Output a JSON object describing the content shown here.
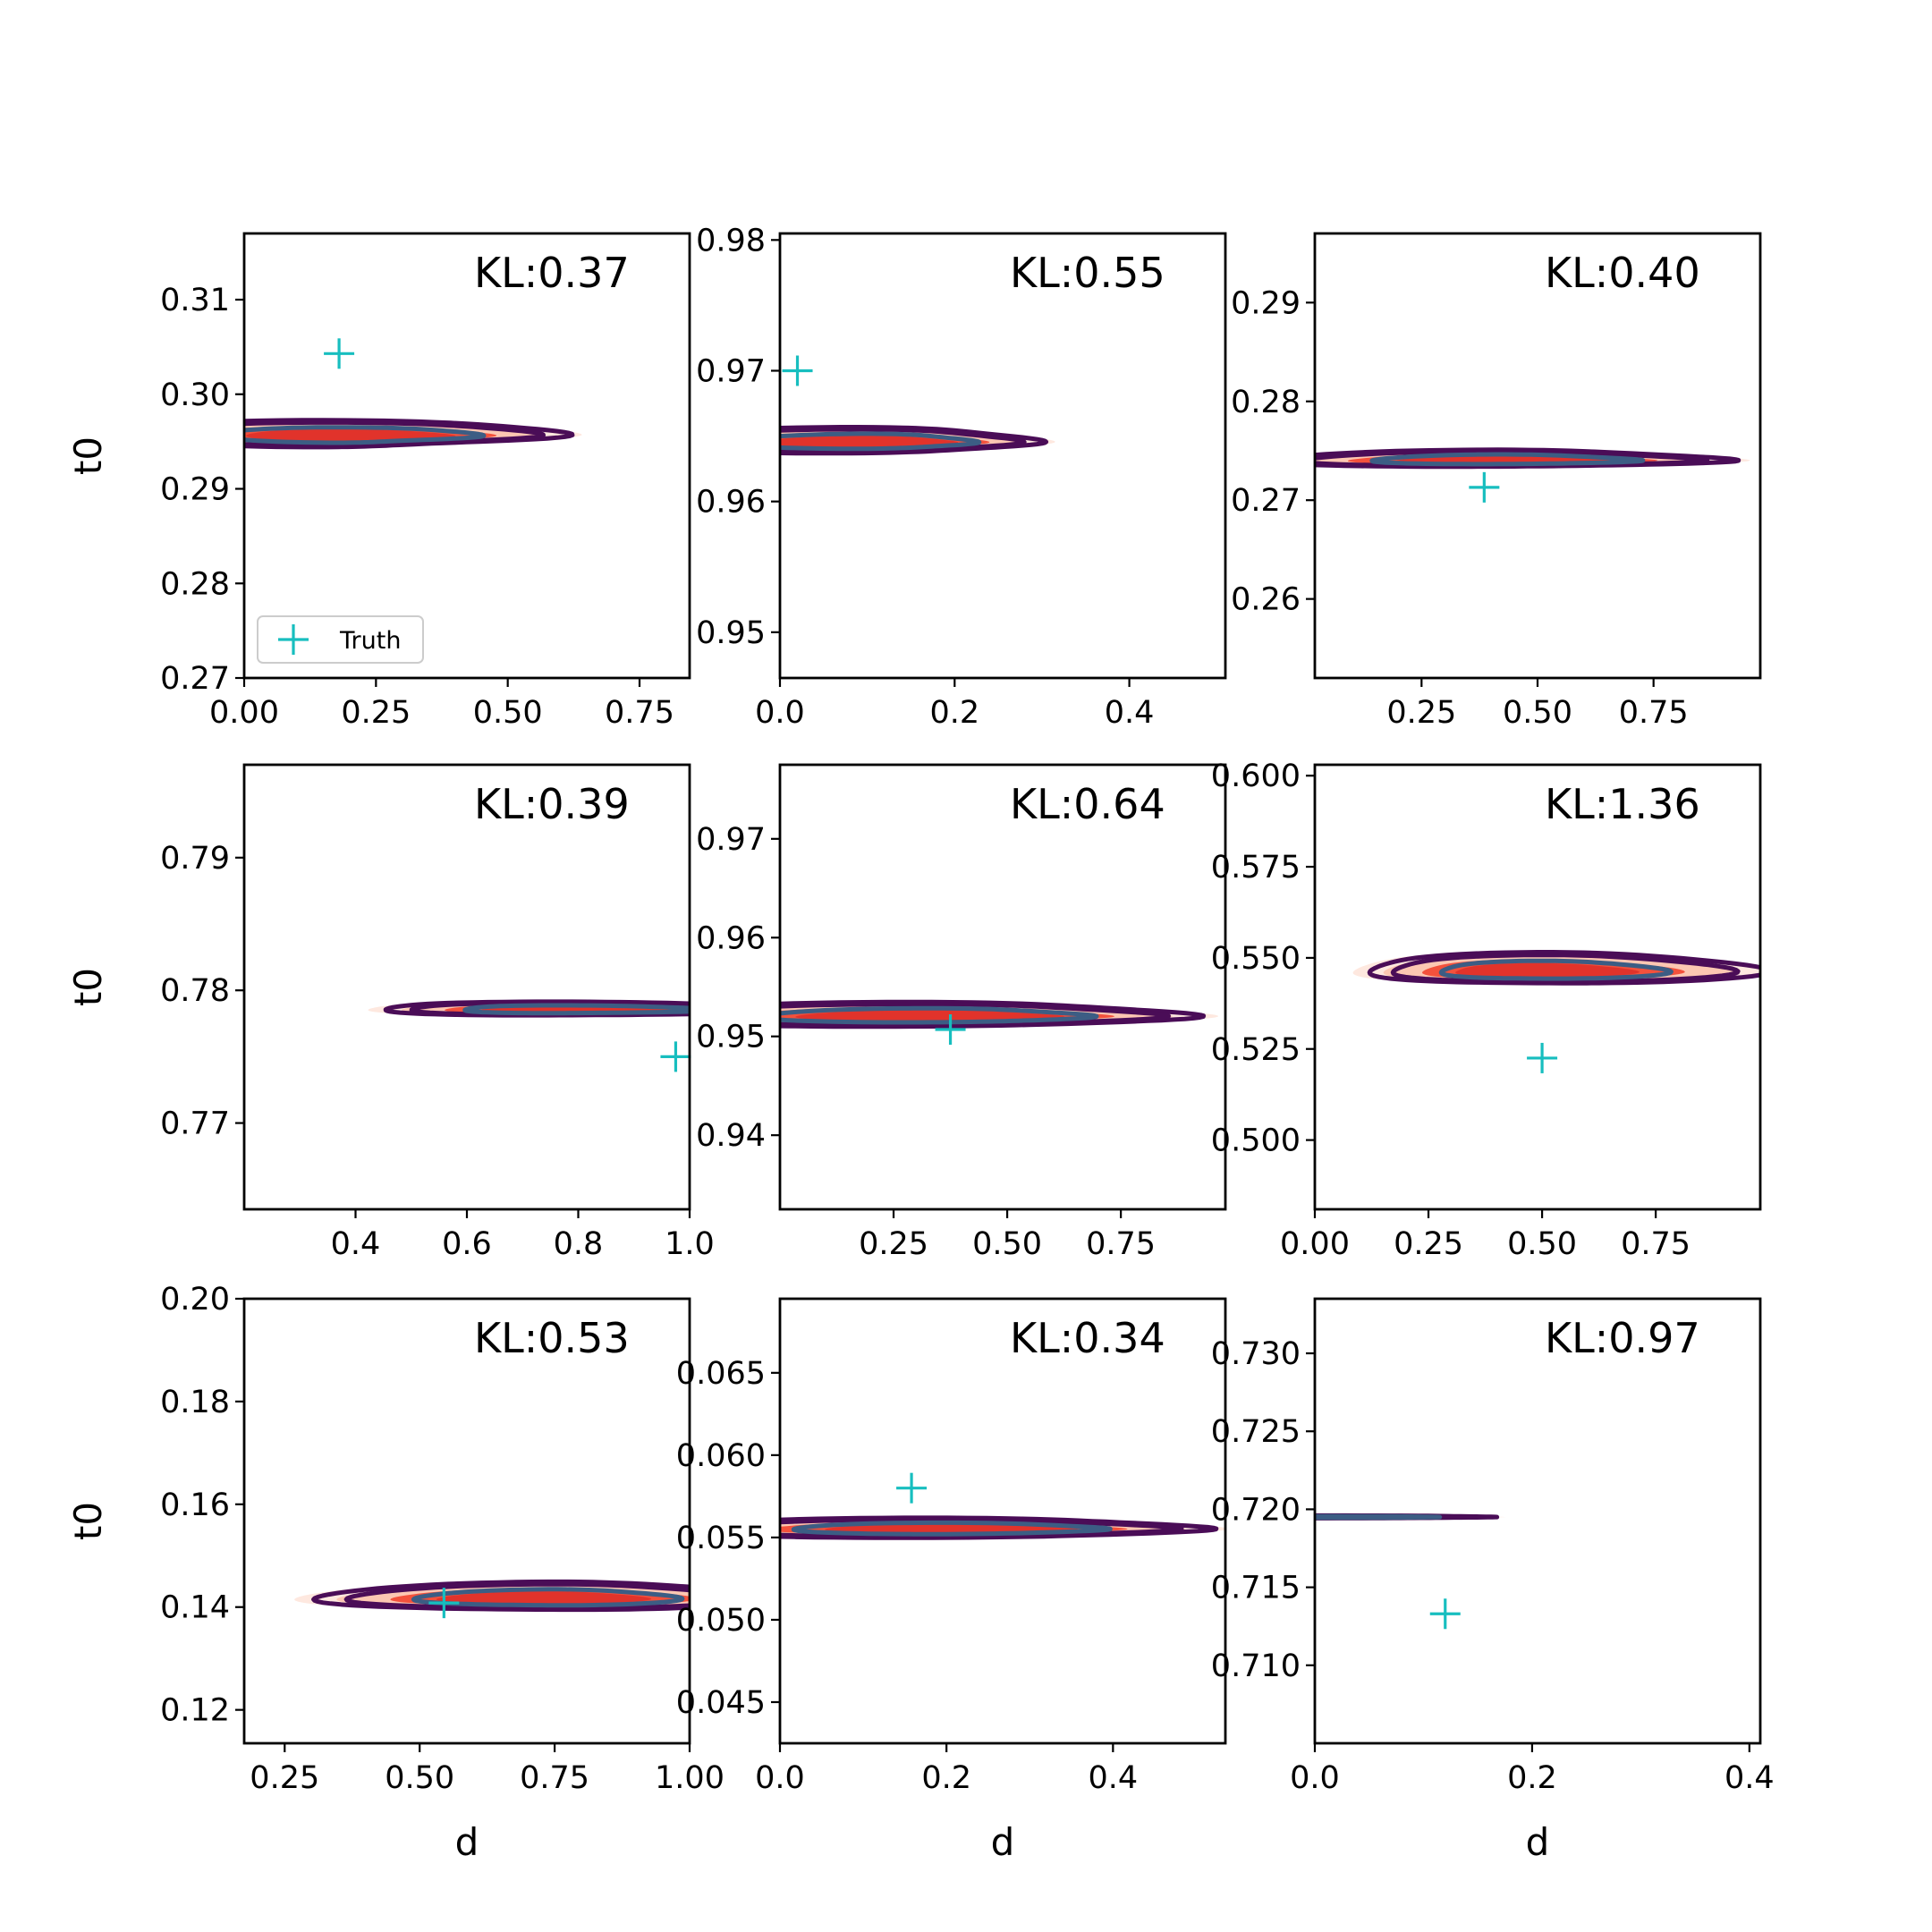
{
  "colors": {
    "posterior_fill_levels": [
      "#fee8df",
      "#fcc7b2",
      "#f3513c",
      "#e1332b"
    ],
    "outer_contour": "#4a0d57",
    "inner_contour": "#3c5d84",
    "truth_marker": "#17bebf"
  },
  "legend": {
    "label": "Truth",
    "panel": 0,
    "placement": "lower-left"
  },
  "chart_data": [
    {
      "type": "contour",
      "kl": "KL:0.37",
      "truth": [
        0.18,
        0.3043
      ],
      "xlim": [
        0,
        0.845
      ],
      "ylim": [
        0.27,
        0.317
      ],
      "xticks": [
        "0.00",
        "0.25",
        "0.50",
        "0.75"
      ],
      "xtick_values": [
        0,
        0.25,
        0.5,
        0.75
      ],
      "yticks": [
        "0.27",
        "0.28",
        "0.29",
        "0.30",
        "0.31"
      ],
      "ytick_values": [
        0.27,
        0.28,
        0.29,
        0.3,
        0.31
      ],
      "xlabel": "",
      "ylabel": "t0",
      "center": [
        0.22,
        0.2955
      ],
      "dx": [
        0.36,
        -0.31
      ],
      "dy": [
        0.08,
        0.147
      ],
      "u": [
        -0.16,
        0.12,
        -0.35
      ],
      "v": [
        -0.23,
        0.035,
        -0.25
      ]
    },
    {
      "type": "contour",
      "kl": "KL:0.55",
      "truth": [
        0.02,
        0.97
      ],
      "xlim": [
        0,
        0.51
      ],
      "ylim": [
        0.9465,
        0.9805
      ],
      "xticks": [
        "0.0",
        "0.2",
        "0.4"
      ],
      "xtick_values": [
        0,
        0.2,
        0.4
      ],
      "yticks": [
        "0.95",
        "0.96",
        "0.97",
        "0.98"
      ],
      "ytick_values": [
        0.95,
        0.96,
        0.97,
        0.98
      ],
      "xlabel": "",
      "ylabel": "",
      "center": [
        0.12,
        0.9645
      ],
      "dx": [
        0.34,
        -0.24
      ],
      "dy": [
        0.1,
        0.13
      ],
      "u": [
        -0.35,
        0.14,
        -0.1
      ],
      "v": [
        -0.25,
        0.03,
        -0.2
      ]
    },
    {
      "type": "contour",
      "kl": "KL:0.40",
      "truth": [
        0.385,
        0.2713
      ],
      "xlim": [
        0.02,
        0.98
      ],
      "ylim": [
        0.252,
        0.297
      ],
      "xticks": [
        "0.25",
        "0.50",
        "0.75"
      ],
      "xtick_values": [
        0.25,
        0.5,
        0.75
      ],
      "yticks": [
        "0.26",
        "0.27",
        "0.28",
        "0.29"
      ],
      "ytick_values": [
        0.26,
        0.27,
        0.28,
        0.29
      ],
      "xlabel": "",
      "ylabel": "",
      "center": [
        0.44,
        0.274
      ],
      "dx": [
        0.38,
        -0.26
      ],
      "dy": [
        0.06,
        0.14
      ],
      "u": [
        -0.1,
        0.12,
        -0.05
      ],
      "v": [
        -0.15,
        0.02,
        -0.3
      ]
    },
    {
      "type": "contour",
      "kl": "KL:0.39",
      "truth": [
        0.975,
        0.775
      ],
      "xlim": [
        0.2,
        1.0
      ],
      "ylim": [
        0.7635,
        0.797
      ],
      "xticks": [
        "0.4",
        "0.6",
        "0.8",
        "1.0"
      ],
      "xtick_values": [
        0.4,
        0.6,
        0.8,
        1.0
      ],
      "yticks": [
        "0.77",
        "0.78",
        "0.79"
      ],
      "ytick_values": [
        0.77,
        0.78,
        0.79
      ],
      "xlabel": "",
      "ylabel": "t0",
      "center": [
        0.78,
        0.7785
      ],
      "dx": [
        0.36,
        -0.24
      ],
      "dy": [
        0.055,
        0.145
      ],
      "u": [
        0.1,
        0.08,
        -0.15
      ],
      "v": [
        -0.1,
        0.06,
        -0.25
      ]
    },
    {
      "type": "contour",
      "kl": "KL:0.64",
      "truth": [
        0.375,
        0.9507
      ],
      "xlim": [
        0,
        0.98
      ],
      "ylim": [
        0.9325,
        0.9775
      ],
      "xticks": [
        "0.25",
        "0.50",
        "0.75"
      ],
      "xtick_values": [
        0.25,
        0.5,
        0.75
      ],
      "yticks": [
        "0.94",
        "0.95",
        "0.96",
        "0.97"
      ],
      "ytick_values": [
        0.94,
        0.95,
        0.96,
        0.97
      ],
      "xlabel": "",
      "ylabel": "",
      "center": [
        0.37,
        0.952
      ],
      "dx": [
        0.48,
        -0.38
      ],
      "dy": [
        0.06,
        0.13
      ],
      "u": [
        -0.2,
        0.1,
        -0.05
      ],
      "v": [
        -0.2,
        0.03,
        -0.2
      ]
    },
    {
      "type": "contour",
      "kl": "KL:1.36",
      "truth": [
        0.5,
        0.5225
      ],
      "xlim": [
        0,
        0.98
      ],
      "ylim": [
        0.481,
        0.603
      ],
      "xticks": [
        "0.00",
        "0.25",
        "0.50",
        "0.75"
      ],
      "xtick_values": [
        0,
        0.25,
        0.5,
        0.75
      ],
      "yticks": [
        "0.500",
        "0.525",
        "0.550",
        "0.575",
        "0.600"
      ],
      "ytick_values": [
        0.5,
        0.525,
        0.55,
        0.575,
        0.6
      ],
      "xlabel": "",
      "ylabel": "",
      "center": [
        0.48,
        0.546
      ],
      "dx": [
        0.34,
        -0.33
      ],
      "dy": [
        0.09,
        0.14
      ],
      "u": [
        0.12,
        0.06,
        -0.1
      ],
      "v": [
        0.05,
        0.04,
        -0.3
      ]
    },
    {
      "type": "contour",
      "kl": "KL:0.53",
      "truth": [
        0.545,
        0.1408
      ],
      "xlim": [
        0.175,
        1.0
      ],
      "ylim": [
        0.1135,
        0.2
      ],
      "xticks": [
        "0.25",
        "0.50",
        "0.75",
        "1.00"
      ],
      "xtick_values": [
        0.25,
        0.5,
        0.75,
        1.0
      ],
      "yticks": [
        "0.12",
        "0.14",
        "0.16",
        "0.18",
        "0.20"
      ],
      "ytick_values": [
        0.12,
        0.14,
        0.16,
        0.18,
        0.2
      ],
      "xlabel": "d",
      "ylabel": "t0",
      "center": [
        0.73,
        0.1415
      ],
      "dx": [
        0.37,
        -0.39
      ],
      "dy": [
        0.07,
        0.14
      ],
      "u": [
        -0.05,
        0.14,
        -0.1
      ],
      "v": [
        0.05,
        0.06,
        -0.25
      ]
    },
    {
      "type": "contour",
      "kl": "KL:0.34",
      "truth": [
        0.158,
        0.058
      ],
      "xlim": [
        0,
        0.535
      ],
      "ylim": [
        0.0425,
        0.0695
      ],
      "xticks": [
        "0.0",
        "0.2",
        "0.4"
      ],
      "xtick_values": [
        0,
        0.2,
        0.4
      ],
      "yticks": [
        "0.045",
        "0.050",
        "0.055",
        "0.060",
        "0.065"
      ],
      "ytick_values": [
        0.045,
        0.05,
        0.055,
        0.06,
        0.065
      ],
      "xlabel": "d",
      "ylabel": "",
      "center": [
        0.22,
        0.0555
      ],
      "dx": [
        0.46,
        -0.37
      ],
      "dy": [
        0.05,
        0.12
      ],
      "u": [
        -0.15,
        0.08,
        -0.05
      ],
      "v": [
        -0.2,
        0.025,
        -0.15
      ]
    },
    {
      "type": "contour",
      "kl": "KL:0.97",
      "truth": [
        0.12,
        0.7133
      ],
      "xlim": [
        0,
        0.41
      ],
      "ylim": [
        0.705,
        0.7335
      ],
      "xticks": [
        "0.0",
        "0.2",
        "0.4"
      ],
      "xtick_values": [
        0,
        0.2,
        0.4
      ],
      "yticks": [
        "0.710",
        "0.715",
        "0.720",
        "0.725",
        "0.730"
      ],
      "ytick_values": [
        0.71,
        0.715,
        0.72,
        0.725,
        0.73
      ],
      "xlabel": "d",
      "ylabel": "",
      "center": [
        0.04,
        0.7195
      ],
      "dx": [
        0.35,
        -0.04
      ],
      "dy": [
        0.06,
        0.33
      ],
      "u": [
        -0.45,
        0.1,
        -0.1
      ],
      "v": [
        -0.3,
        0.05,
        -0.2
      ]
    }
  ]
}
